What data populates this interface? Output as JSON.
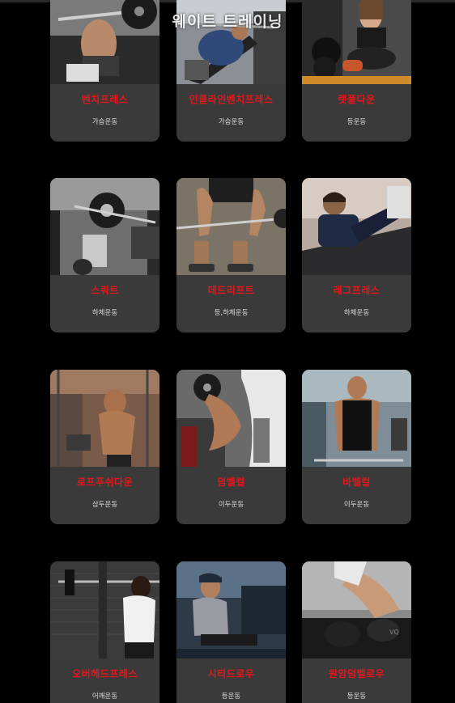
{
  "page": {
    "heading": "웨이트 트레이닝"
  },
  "exercises": [
    {
      "name": "벤치프레스",
      "category": "가슴운동",
      "photo": "bench-press-photo"
    },
    {
      "name": "인클라인벤치프레스",
      "category": "가슴운동",
      "photo": "incline-bench-press-photo"
    },
    {
      "name": "랫풀다운",
      "category": "등운동",
      "photo": "lat-pulldown-photo"
    },
    {
      "name": "스쿼트",
      "category": "하체운동",
      "photo": "squat-photo"
    },
    {
      "name": "데드리프트",
      "category": "등,하체운동",
      "photo": "deadlift-photo"
    },
    {
      "name": "레그프레스",
      "category": "하체운동",
      "photo": "leg-press-photo"
    },
    {
      "name": "로프푸쉬다운",
      "category": "삼두운동",
      "photo": "rope-pushdown-photo"
    },
    {
      "name": "덤벨컬",
      "category": "이두운동",
      "photo": "dumbbell-curl-photo"
    },
    {
      "name": "바벨컬",
      "category": "이두운동",
      "photo": "barbell-curl-photo"
    },
    {
      "name": "오버헤드프레스",
      "category": "어깨운동",
      "photo": "overhead-press-photo"
    },
    {
      "name": "시티드로우",
      "category": "등운동",
      "photo": "seated-row-photo"
    },
    {
      "name": "원암덤벨로우",
      "category": "등운동",
      "photo": "one-arm-dumbbell-row-photo"
    }
  ],
  "colors": {
    "background": "#000000",
    "card": "#3a3a3a",
    "title": "#e8161b",
    "subtitle": "#dcdcdc"
  }
}
